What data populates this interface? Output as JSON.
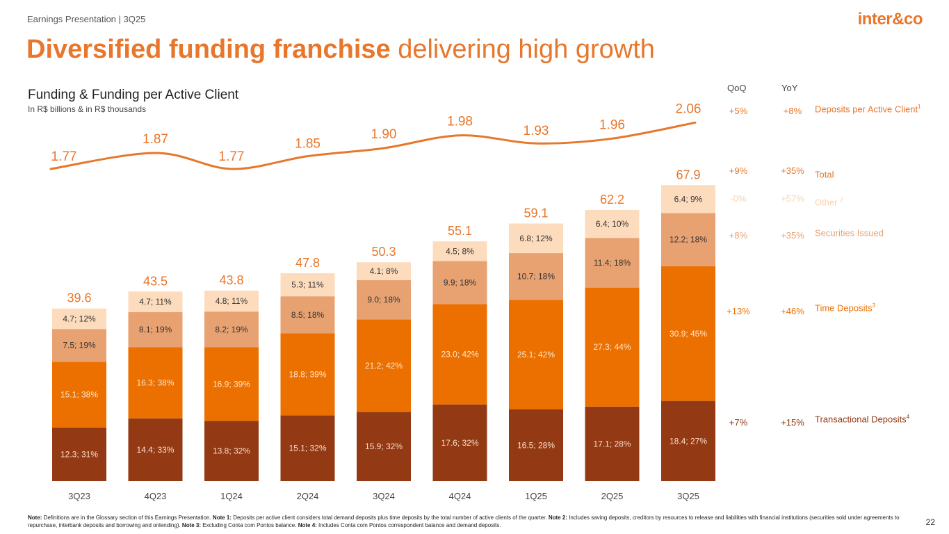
{
  "header": {
    "label": "Earnings Presentation | 3Q25",
    "logo": "inter&co",
    "page_number": "22"
  },
  "title": {
    "bold": "Diversified funding franchise",
    "rest": " delivering high growth"
  },
  "chart_data": {
    "type": "bar",
    "stacked": true,
    "title": "Funding & Funding per Active Client",
    "subtitle": "In R$ billions & in R$ thousands",
    "categories": [
      "3Q23",
      "4Q23",
      "1Q24",
      "2Q24",
      "3Q24",
      "4Q24",
      "1Q25",
      "2Q25",
      "3Q25"
    ],
    "series": [
      {
        "name": "Transactional Deposits",
        "color": "#933a14",
        "text_color": "#f7dcc9",
        "values": [
          12.3,
          14.4,
          13.8,
          15.1,
          15.9,
          17.6,
          16.5,
          17.1,
          18.4
        ],
        "labels": [
          "12.3; 31%",
          "14.4; 33%",
          "13.8; 32%",
          "15.1; 32%",
          "15.9; 32%",
          "17.6; 32%",
          "16.5; 28%",
          "17.1; 28%",
          "18.4; 27%"
        ]
      },
      {
        "name": "Time Deposits",
        "color": "#ec7000",
        "text_color": "#fde6cf",
        "values": [
          15.1,
          16.3,
          16.9,
          18.8,
          21.2,
          23.0,
          25.1,
          27.3,
          30.9
        ],
        "labels": [
          "15.1; 38%",
          "16.3; 38%",
          "16.9; 39%",
          "18.8; 39%",
          "21.2; 42%",
          "23.0; 42%",
          "25.1; 42%",
          "27.3; 44%",
          "30.9; 45%"
        ]
      },
      {
        "name": "Securities Issued",
        "color": "#e8a272",
        "text_color": "#333333",
        "values": [
          7.5,
          8.1,
          8.2,
          8.5,
          9.0,
          9.9,
          10.7,
          11.4,
          12.2
        ],
        "labels": [
          "7.5; 19%",
          "8.1; 19%",
          "8.2; 19%",
          "8.5; 18%",
          "9.0; 18%",
          "9.9; 18%",
          "10.7; 18%",
          "11.4; 18%",
          "12.2; 18%"
        ]
      },
      {
        "name": "Other",
        "color": "#fddcbd",
        "text_color": "#333333",
        "values": [
          4.7,
          4.7,
          4.8,
          5.3,
          4.1,
          4.5,
          6.8,
          6.4,
          6.4
        ],
        "labels": [
          "4.7; 12%",
          "4.7; 11%",
          "4.8; 11%",
          "5.3; 11%",
          "4.1; 8%",
          "4.5; 8%",
          "6.8; 12%",
          "6.4; 10%",
          "6.4; 9%"
        ]
      }
    ],
    "totals": [
      "39.6",
      "43.5",
      "43.8",
      "47.8",
      "50.3",
      "55.1",
      "59.1",
      "62.2",
      "67.9"
    ],
    "total_values": [
      39.6,
      43.5,
      43.8,
      47.8,
      50.3,
      55.1,
      59.1,
      62.2,
      67.9
    ],
    "line": {
      "name": "Deposits per Active Client",
      "values": [
        1.77,
        1.87,
        1.77,
        1.85,
        1.9,
        1.98,
        1.93,
        1.96,
        2.06
      ],
      "labels": [
        "1.77",
        "1.87",
        "1.77",
        "1.85",
        "1.90",
        "1.98",
        "1.93",
        "1.96",
        "2.06"
      ],
      "color": "#e8762b"
    },
    "ylim": [
      0,
      70
    ]
  },
  "side_table": {
    "qoq_header": "QoQ",
    "yoy_header": "YoY",
    "rows": [
      {
        "qoq": "+5%",
        "yoy": "+8%",
        "label": "Deposits per Active Client",
        "sup": "1",
        "color": "#e8762b"
      },
      {
        "qoq": "+9%",
        "yoy": "+35%",
        "label": "Total",
        "sup": "",
        "color": "#e8762b"
      },
      {
        "qoq": "-0%",
        "yoy": "+57%",
        "label": "Other",
        "sup": "2",
        "color": "#fbd3ac"
      },
      {
        "qoq": "+8%",
        "yoy": "+35%",
        "label": "Securities Issued",
        "sup": "",
        "color": "#e8a272"
      },
      {
        "qoq": "+13%",
        "yoy": "+46%",
        "label": "Time Deposits",
        "sup": "3",
        "color": "#ec7000"
      },
      {
        "qoq": "+7%",
        "yoy": "+15%",
        "label": "Transactional Deposits",
        "sup": "4",
        "color": "#933a14"
      }
    ]
  },
  "note": {
    "label": "Note:",
    "intro": " Definitions are in the Glossary section of this Earnings Presentation. ",
    "n1_label": "Note 1:",
    "n1": " Deposits per active client considers total demand deposits plus time deposits by the total number of active clients of the quarter. ",
    "n2_label": "Note 2:",
    "n2": " Includes saving deposits, creditors by resources to release and liabilities with financial institutions (securities sold under agreements to repurchase, interbank deposits and borrowing and onlending). ",
    "n3_label": "Note 3:",
    "n3": " Excluding Conta com Pontos balance. ",
    "n4_label": "Note 4:",
    "n4": " Includes Conta com Pontos correspondent balance and demand deposits."
  }
}
